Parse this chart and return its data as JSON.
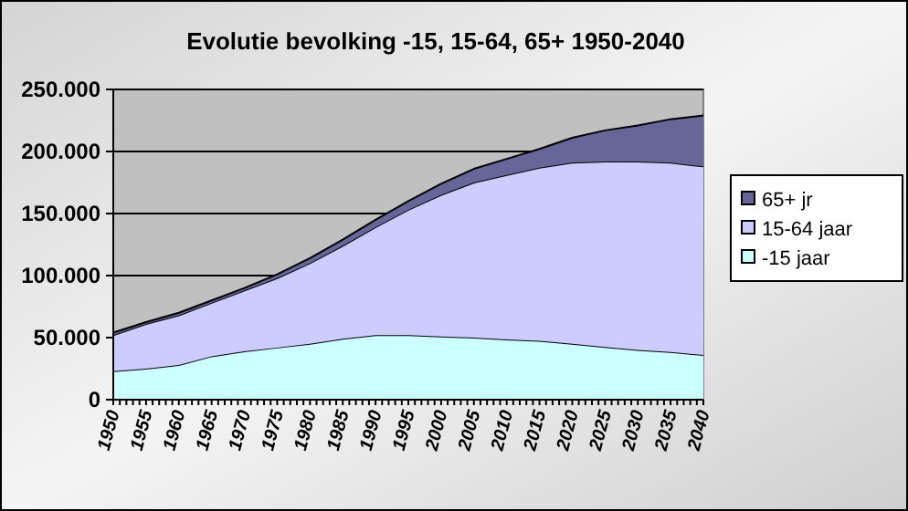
{
  "chart_data": {
    "type": "area",
    "stacked": true,
    "title": "Evolutie bevolking -15, 15-64, 65+ 1950-2040",
    "x": [
      1950,
      1955,
      1960,
      1965,
      1970,
      1975,
      1980,
      1985,
      1990,
      1995,
      2000,
      2005,
      2010,
      2015,
      2020,
      2025,
      2030,
      2035,
      2040
    ],
    "series": [
      {
        "name": "-15 jaar",
        "color": "#ccffff",
        "values": [
          23000,
          25000,
          28000,
          35000,
          39000,
          42000,
          45000,
          49000,
          52000,
          52000,
          51000,
          50000,
          48500,
          47500,
          45000,
          42500,
          40000,
          38500,
          36000
        ]
      },
      {
        "name": "15-64 jaar",
        "color": "#ccccff",
        "values": [
          29000,
          36000,
          40000,
          43000,
          49000,
          56000,
          65000,
          75000,
          87000,
          101000,
          114000,
          125000,
          132500,
          139500,
          146000,
          149500,
          152000,
          152500,
          152000
        ]
      },
      {
        "name": "65+ jr",
        "color": "#666699",
        "values": [
          2000,
          1500,
          2000,
          2000,
          2000,
          3000,
          4000,
          5000,
          6000,
          7000,
          9000,
          11000,
          13000,
          15000,
          20000,
          25000,
          29000,
          35000,
          41000
        ]
      }
    ],
    "xlim": [
      1950,
      2040
    ],
    "xticks": [
      1950,
      1955,
      1960,
      1965,
      1970,
      1975,
      1980,
      1985,
      1990,
      1995,
      2000,
      2005,
      2010,
      2015,
      2020,
      2025,
      2030,
      2035,
      2040
    ],
    "ylim": [
      0,
      250000
    ],
    "yticks": [
      {
        "value": 0,
        "label": "0"
      },
      {
        "value": 50000,
        "label": "50.000"
      },
      {
        "value": 100000,
        "label": "100.000"
      },
      {
        "value": 150000,
        "label": "150.000"
      },
      {
        "value": 200000,
        "label": "200.000"
      },
      {
        "value": 250000,
        "label": "250.000"
      }
    ],
    "grid": "y",
    "legend": "right"
  }
}
